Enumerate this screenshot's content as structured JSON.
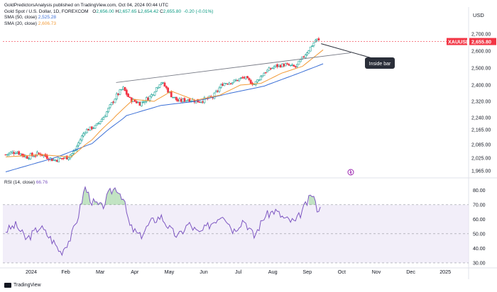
{
  "header": {
    "publisher_line": "GoldPredictorsAnalysis published on TradingView.com, Oct 04, 2024 00:44 UTC",
    "symbol": "Gold Spot / U.S. Dollar, 1D, FOREXCOM",
    "ohlc": {
      "o_label": "O",
      "o": "2,656.00",
      "h_label": "H",
      "h": "2,657.65",
      "l_label": "L",
      "l": "2,654.42",
      "c_label": "C",
      "c": "2,655.80",
      "change": "-0.20 (-0.01%)"
    },
    "sma50_label": "SMA (50, close)",
    "sma50_value": "2,525.28",
    "sma20_label": "SMA (20, close)",
    "sma20_value": "2,606.73"
  },
  "rsi_label": "RSI (14, close)",
  "rsi_value": "66.76",
  "currency": "USD",
  "price_tag": {
    "symbol": "XAUUSD",
    "value": "2,655.80"
  },
  "annotation": "Inside bar",
  "footer": {
    "brand": "TradingView"
  },
  "colors": {
    "up": "#089981",
    "down": "#f23645",
    "candle_body": "#26a69a",
    "sma50": "#3b6fd6",
    "sma20": "#f29b38",
    "rsi": "#7e57c2",
    "rsi_fill": "#ede7f6",
    "trendline": "#787b86",
    "annotation_bg": "#2a2e39",
    "price_tag_bg": "#f23645"
  },
  "chart_data": [
    {
      "type": "candlestick",
      "title": "Gold Spot / U.S. Dollar, 1D, FOREXCOM",
      "ylim": [
        1940,
        2750
      ],
      "y_ticks": [
        {
          "label": "2,700.00",
          "value": 2700
        },
        {
          "label": "2,600.00",
          "value": 2600
        },
        {
          "label": "2,500.00",
          "value": 2500
        },
        {
          "label": "2,400.00",
          "value": 2400
        },
        {
          "label": "2,320.00",
          "value": 2320
        },
        {
          "label": "2,240.00",
          "value": 2240
        },
        {
          "label": "2,165.00",
          "value": 2165
        },
        {
          "label": "2,085.00",
          "value": 2085
        },
        {
          "label": "2,025.00",
          "value": 2025
        },
        {
          "label": "1,965.00",
          "value": 1965
        }
      ],
      "x_ticks": [
        "2024",
        "Feb",
        "Mar",
        "Apr",
        "May",
        "Jun",
        "Jul",
        "Aug",
        "Sep",
        "Oct",
        "Nov",
        "Dec",
        "2025"
      ],
      "close_anchors": [
        {
          "month": 0,
          "value": 2040
        },
        {
          "month": 0.3,
          "value": 2055
        },
        {
          "month": 0.6,
          "value": 2030
        },
        {
          "month": 1.0,
          "value": 2045
        },
        {
          "month": 1.4,
          "value": 2015
        },
        {
          "month": 1.8,
          "value": 2030
        },
        {
          "month": 2.0,
          "value": 2055
        },
        {
          "month": 2.3,
          "value": 2160
        },
        {
          "month": 2.6,
          "value": 2185
        },
        {
          "month": 2.9,
          "value": 2260
        },
        {
          "month": 3.2,
          "value": 2345
        },
        {
          "month": 3.4,
          "value": 2385
        },
        {
          "month": 3.6,
          "value": 2330
        },
        {
          "month": 3.9,
          "value": 2310
        },
        {
          "month": 4.2,
          "value": 2345
        },
        {
          "month": 4.5,
          "value": 2420
        },
        {
          "month": 4.8,
          "value": 2350
        },
        {
          "month": 5.0,
          "value": 2320
        },
        {
          "month": 5.3,
          "value": 2330
        },
        {
          "month": 5.6,
          "value": 2320
        },
        {
          "month": 6.0,
          "value": 2340
        },
        {
          "month": 6.3,
          "value": 2410
        },
        {
          "month": 6.6,
          "value": 2420
        },
        {
          "month": 6.9,
          "value": 2445
        },
        {
          "month": 7.2,
          "value": 2405
        },
        {
          "month": 7.5,
          "value": 2475
        },
        {
          "month": 7.8,
          "value": 2510
        },
        {
          "month": 8.1,
          "value": 2520
        },
        {
          "month": 8.4,
          "value": 2505
        },
        {
          "month": 8.7,
          "value": 2585
        },
        {
          "month": 8.9,
          "value": 2640
        },
        {
          "month": 9.0,
          "value": 2670
        },
        {
          "month": 9.1,
          "value": 2656
        }
      ],
      "sma50_anchors": [
        {
          "month": 0,
          "value": 1960
        },
        {
          "month": 1.5,
          "value": 2030
        },
        {
          "month": 2.5,
          "value": 2090
        },
        {
          "month": 3.5,
          "value": 2250
        },
        {
          "month": 4.5,
          "value": 2300
        },
        {
          "month": 5.5,
          "value": 2320
        },
        {
          "month": 6.5,
          "value": 2360
        },
        {
          "month": 7.5,
          "value": 2395
        },
        {
          "month": 8.5,
          "value": 2470
        },
        {
          "month": 9.2,
          "value": 2525
        }
      ],
      "sma20_anchors": [
        {
          "month": 0,
          "value": 2030
        },
        {
          "month": 1.0,
          "value": 2040
        },
        {
          "month": 1.9,
          "value": 2030
        },
        {
          "month": 2.5,
          "value": 2110
        },
        {
          "month": 3.2,
          "value": 2250
        },
        {
          "month": 3.7,
          "value": 2330
        },
        {
          "month": 4.3,
          "value": 2320
        },
        {
          "month": 4.8,
          "value": 2370
        },
        {
          "month": 5.5,
          "value": 2325
        },
        {
          "month": 6.2,
          "value": 2350
        },
        {
          "month": 6.8,
          "value": 2400
        },
        {
          "month": 7.4,
          "value": 2410
        },
        {
          "month": 8.0,
          "value": 2470
        },
        {
          "month": 8.6,
          "value": 2510
        },
        {
          "month": 9.2,
          "value": 2607
        }
      ],
      "trendline": {
        "start": {
          "month": 3.2,
          "value": 2415
        },
        "end": {
          "month": 10.0,
          "value": 2590
        }
      },
      "last_price": 2655.8
    },
    {
      "type": "line",
      "title": "RSI (14, close)",
      "ylim": [
        28,
        86
      ],
      "y_ticks": [
        {
          "label": "80.00",
          "value": 80
        },
        {
          "label": "70.00",
          "value": 70
        },
        {
          "label": "60.00",
          "value": 60
        },
        {
          "label": "50.00",
          "value": 50
        },
        {
          "label": "40.00",
          "value": 40
        },
        {
          "label": "30.00",
          "value": 30
        }
      ],
      "bands": {
        "upper": 70,
        "lower": 30,
        "middle": 50
      },
      "anchors": [
        {
          "month": 0,
          "value": 52
        },
        {
          "month": 0.3,
          "value": 56
        },
        {
          "month": 0.6,
          "value": 46
        },
        {
          "month": 1.0,
          "value": 55
        },
        {
          "month": 1.4,
          "value": 44
        },
        {
          "month": 1.6,
          "value": 37
        },
        {
          "month": 1.9,
          "value": 48
        },
        {
          "month": 2.1,
          "value": 62
        },
        {
          "month": 2.3,
          "value": 82
        },
        {
          "month": 2.5,
          "value": 72
        },
        {
          "month": 2.8,
          "value": 68
        },
        {
          "month": 3.0,
          "value": 78
        },
        {
          "month": 3.2,
          "value": 82
        },
        {
          "month": 3.4,
          "value": 75
        },
        {
          "month": 3.6,
          "value": 55
        },
        {
          "month": 3.9,
          "value": 48
        },
        {
          "month": 4.2,
          "value": 58
        },
        {
          "month": 4.5,
          "value": 62
        },
        {
          "month": 4.8,
          "value": 52
        },
        {
          "month": 5.0,
          "value": 48
        },
        {
          "month": 5.3,
          "value": 57
        },
        {
          "month": 5.6,
          "value": 50
        },
        {
          "month": 6.0,
          "value": 58
        },
        {
          "month": 6.3,
          "value": 64
        },
        {
          "month": 6.6,
          "value": 52
        },
        {
          "month": 6.9,
          "value": 60
        },
        {
          "month": 7.2,
          "value": 48
        },
        {
          "month": 7.5,
          "value": 62
        },
        {
          "month": 7.8,
          "value": 66
        },
        {
          "month": 8.1,
          "value": 60
        },
        {
          "month": 8.4,
          "value": 58
        },
        {
          "month": 8.7,
          "value": 70
        },
        {
          "month": 8.9,
          "value": 78
        },
        {
          "month": 9.0,
          "value": 68
        },
        {
          "month": 9.15,
          "value": 66.76
        }
      ],
      "last_value": 66.76
    }
  ]
}
